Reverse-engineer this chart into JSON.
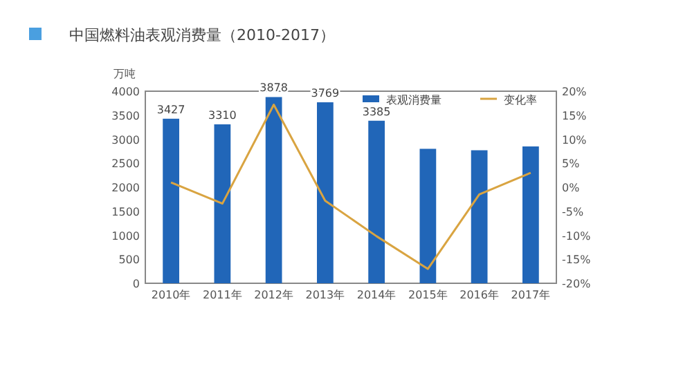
{
  "chart_data": {
    "type": "bar",
    "title": "中国燃料油表观消费量（2010-2017）",
    "ylabel": "万吨",
    "categories": [
      "2010年",
      "2011年",
      "2012年",
      "2013年",
      "2014年",
      "2015年",
      "2016年",
      "2017年"
    ],
    "series": [
      {
        "name": "表观消费量",
        "color": "#2166b8",
        "values": [
          3427,
          3310,
          3878,
          3769,
          3385,
          2800,
          2770,
          2850
        ],
        "value_labels": [
          "3427",
          "3310",
          "3878",
          "3769",
          "3385",
          null,
          null,
          null
        ]
      },
      {
        "name": "变化率",
        "type": "line",
        "axis": "y2",
        "color": "#d9a441",
        "values": [
          1,
          -3.4,
          17.2,
          -2.8,
          -10.2,
          -17,
          -1.5,
          3
        ]
      }
    ],
    "ylim": [
      0,
      4000
    ],
    "yticks": [
      0,
      500,
      1000,
      1500,
      2000,
      2500,
      3000,
      3500,
      4000
    ],
    "y2lim": [
      -20,
      20
    ],
    "y2ticks": [
      {
        "value": -20,
        "label": "-20%"
      },
      {
        "value": -15,
        "label": "-15%"
      },
      {
        "value": -10,
        "label": "-10%"
      },
      {
        "value": -5,
        "label": "-5%"
      },
      {
        "value": 0,
        "label": "0%"
      },
      {
        "value": 5,
        "label": "5%"
      },
      {
        "value": 10,
        "label": "10%"
      },
      {
        "value": 15,
        "label": "15%"
      },
      {
        "value": 20,
        "label": "20%"
      }
    ],
    "legend": "top right"
  }
}
